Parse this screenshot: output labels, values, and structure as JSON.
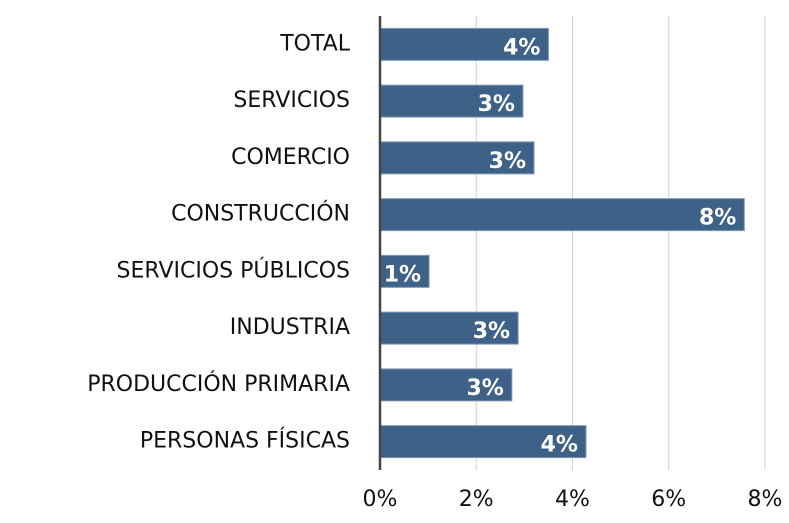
{
  "chart_data": {
    "type": "barh",
    "categories": [
      "TOTAL",
      "SERVICIOS",
      "COMERCIO",
      "CONSTRUCCIÓN",
      "SERVICIOS PÚBLICOS",
      "INDUSTRIA",
      "PRODUCCIÓN PRIMARIA",
      "PERSONAS FÍSICAS"
    ],
    "values": [
      3.5,
      2.97,
      3.2,
      7.57,
      1.02,
      2.87,
      2.74,
      4.28
    ],
    "value_labels": [
      "4%",
      "3%",
      "3%",
      "8%",
      "1%",
      "3%",
      "3%",
      "4%"
    ],
    "color": "#3e6188",
    "xlim": [
      0,
      8
    ],
    "xticks": [
      {
        "value": 0,
        "label": "0%"
      },
      {
        "value": 2,
        "label": "2%"
      },
      {
        "value": 4,
        "label": "4%"
      },
      {
        "value": 6,
        "label": "6%"
      },
      {
        "value": 8,
        "label": "8%"
      }
    ],
    "grid": true
  }
}
